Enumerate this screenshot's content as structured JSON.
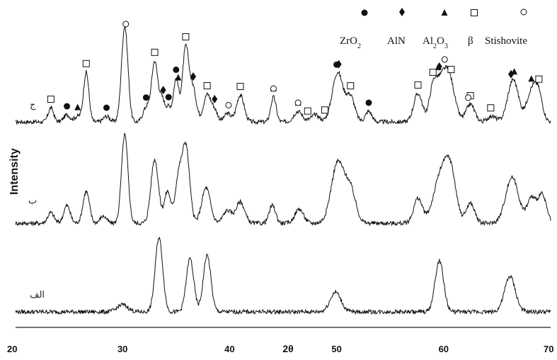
{
  "chart_data": {
    "type": "line",
    "title": "",
    "xlabel": "2θ",
    "ylabel": "Intensity",
    "xlim": [
      20,
      70
    ],
    "x_ticks": [
      "20",
      "30",
      "40",
      "50",
      "60",
      "70"
    ],
    "grid": false,
    "legend_position": "top-right",
    "legend": [
      {
        "symbol": "filled-circle",
        "label_parts": [
          [
            "ZrO",
            false
          ],
          [
            "2",
            true
          ]
        ]
      },
      {
        "symbol": "filled-diamond",
        "label_parts": [
          [
            "AlN",
            false
          ]
        ]
      },
      {
        "symbol": "filled-triangle",
        "label_parts": [
          [
            "Al",
            false
          ],
          [
            "2",
            true
          ],
          [
            "O",
            false
          ],
          [
            "3",
            true
          ]
        ]
      },
      {
        "symbol": "open-square",
        "label_parts": [
          [
            "β",
            false
          ]
        ]
      },
      {
        "symbol": "open-circle",
        "label_parts": [
          [
            "Stishovite",
            false
          ]
        ]
      }
    ],
    "series": [
      {
        "name": "ج",
        "baseline": 0.0,
        "noise": 3,
        "peaks": [
          [
            23.3,
            20,
            0.25
          ],
          [
            24.8,
            10,
            0.3
          ],
          [
            25.8,
            8,
            0.3
          ],
          [
            26.6,
            70,
            0.25
          ],
          [
            28.5,
            8,
            0.3
          ],
          [
            30.2,
            135,
            0.3
          ],
          [
            32.2,
            20,
            0.3
          ],
          [
            33.0,
            85,
            0.3
          ],
          [
            33.7,
            30,
            0.25
          ],
          [
            34.3,
            20,
            0.25
          ],
          [
            35.0,
            60,
            0.25
          ],
          [
            35.9,
            105,
            0.3
          ],
          [
            36.6,
            45,
            0.3
          ],
          [
            37.9,
            38,
            0.35
          ],
          [
            38.6,
            15,
            0.3
          ],
          [
            39.8,
            12,
            0.3
          ],
          [
            41.0,
            38,
            0.35
          ],
          [
            44.1,
            35,
            0.25
          ],
          [
            46.4,
            15,
            0.4
          ],
          [
            48.0,
            10,
            0.4
          ],
          [
            50.1,
            70,
            0.5
          ],
          [
            51.3,
            35,
            0.4
          ],
          [
            53.0,
            15,
            0.3
          ],
          [
            57.6,
            40,
            0.4
          ],
          [
            59.0,
            35,
            0.35
          ],
          [
            59.8,
            55,
            0.6
          ],
          [
            60.6,
            45,
            0.5
          ],
          [
            62.5,
            25,
            0.4
          ],
          [
            64.5,
            8,
            0.4
          ],
          [
            66.5,
            60,
            0.5
          ],
          [
            68.1,
            35,
            0.4
          ],
          [
            68.8,
            45,
            0.4
          ]
        ]
      },
      {
        "name": "ب",
        "baseline": 0.0,
        "noise": 3,
        "peaks": [
          [
            23.3,
            15,
            0.3
          ],
          [
            24.8,
            25,
            0.3
          ],
          [
            26.6,
            45,
            0.3
          ],
          [
            28.2,
            10,
            0.3
          ],
          [
            30.2,
            125,
            0.3
          ],
          [
            33.0,
            90,
            0.35
          ],
          [
            34.2,
            45,
            0.3
          ],
          [
            35.2,
            60,
            0.3
          ],
          [
            35.9,
            110,
            0.35
          ],
          [
            37.8,
            50,
            0.4
          ],
          [
            39.8,
            18,
            0.4
          ],
          [
            41.0,
            30,
            0.4
          ],
          [
            44.0,
            25,
            0.3
          ],
          [
            46.5,
            20,
            0.4
          ],
          [
            50.1,
            85,
            0.6
          ],
          [
            51.3,
            45,
            0.5
          ],
          [
            57.6,
            35,
            0.4
          ],
          [
            59.8,
            70,
            0.7
          ],
          [
            60.7,
            55,
            0.5
          ],
          [
            62.5,
            28,
            0.4
          ],
          [
            66.4,
            65,
            0.6
          ],
          [
            68.2,
            35,
            0.4
          ],
          [
            69.2,
            40,
            0.4
          ]
        ]
      },
      {
        "name": "الف",
        "baseline": 0.0,
        "noise": 3,
        "peaks": [
          [
            30.0,
            10,
            0.5
          ],
          [
            33.4,
            105,
            0.35
          ],
          [
            36.3,
            75,
            0.35
          ],
          [
            37.9,
            80,
            0.35
          ],
          [
            49.9,
            28,
            0.5
          ],
          [
            59.6,
            72,
            0.4
          ],
          [
            66.2,
            50,
            0.5
          ]
        ]
      }
    ],
    "phase_markers": [
      {
        "phase": "ZrO2",
        "symbol": "filled-circle",
        "x": [
          24.8,
          28.5,
          32.2,
          34.3,
          35.0,
          50.0,
          53.0
        ]
      },
      {
        "phase": "AlN",
        "symbol": "filled-diamond",
        "x": [
          33.8,
          36.6,
          38.6,
          50.2,
          59.6,
          66.3
        ]
      },
      {
        "phase": "Al2O3",
        "symbol": "filled-triangle",
        "x": [
          25.8,
          35.2,
          44.1,
          46.4,
          59.5,
          66.6,
          68.2
        ]
      },
      {
        "phase": "β",
        "symbol": "open-square",
        "x": [
          23.3,
          26.6,
          33.0,
          35.9,
          37.9,
          41.0,
          47.3,
          48.9,
          51.3,
          57.6,
          59.0,
          60.7,
          62.5,
          64.4,
          68.9
        ]
      },
      {
        "phase": "Stishovite",
        "symbol": "open-circle",
        "x": [
          30.3,
          39.9,
          44.1,
          46.4,
          60.1,
          62.3
        ]
      }
    ]
  }
}
